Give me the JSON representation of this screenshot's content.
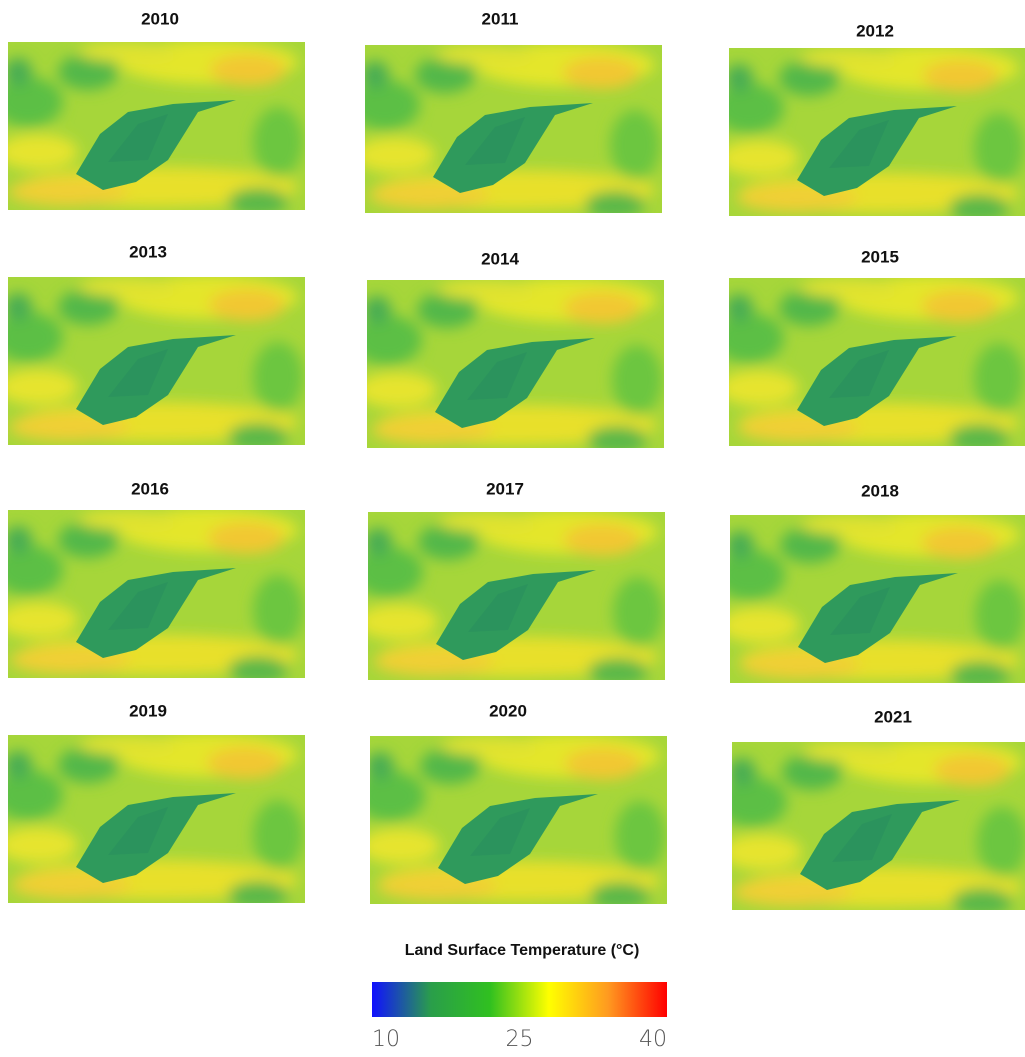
{
  "panels": [
    {
      "title": "2010"
    },
    {
      "title": "2011"
    },
    {
      "title": "2012"
    },
    {
      "title": "2013"
    },
    {
      "title": "2014"
    },
    {
      "title": "2015"
    },
    {
      "title": "2016"
    },
    {
      "title": "2017"
    },
    {
      "title": "2018"
    },
    {
      "title": "2019"
    },
    {
      "title": "2020"
    },
    {
      "title": "2021"
    }
  ],
  "legend": {
    "title": "Land Surface Temperature  (°C)",
    "range": [
      10,
      40
    ],
    "ticks": [
      10,
      25,
      40
    ],
    "colors": [
      "#1010ff",
      "#2a9e4a",
      "#30c020",
      "#ffff00",
      "#ff9a20",
      "#ff0000"
    ]
  }
}
